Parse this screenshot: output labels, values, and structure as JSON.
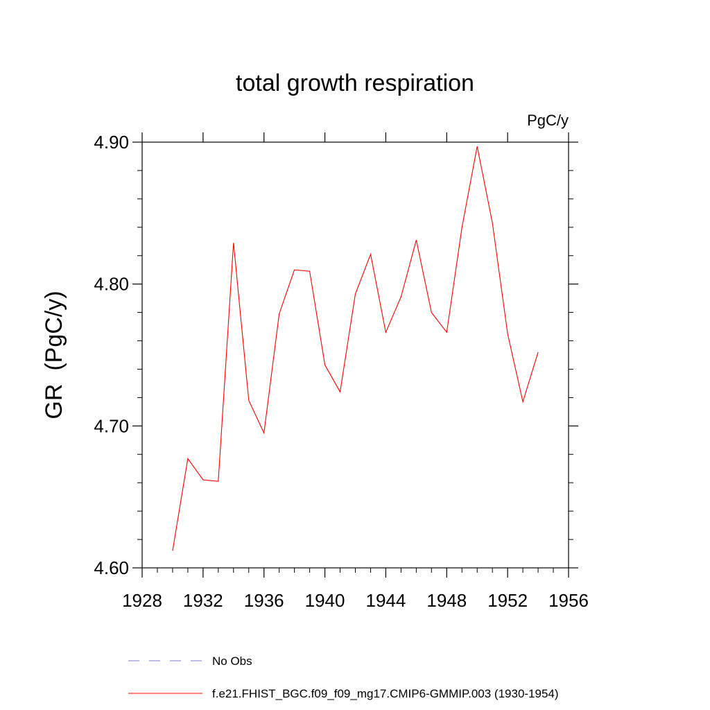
{
  "chart_data": {
    "type": "line",
    "title": "total growth respiration",
    "subtitle": "PgC/y",
    "xlabel": "",
    "ylabel": "GR  (PgC/y)",
    "xlim": [
      1928,
      1956
    ],
    "ylim": [
      4.6,
      4.9
    ],
    "x_ticks": [
      1928,
      1932,
      1936,
      1940,
      1944,
      1948,
      1952,
      1956
    ],
    "x_tick_labels": [
      "1928",
      "1932",
      "1936",
      "1940",
      "1944",
      "1948",
      "1952",
      "1956"
    ],
    "y_ticks": [
      4.6,
      4.7,
      4.8,
      4.9
    ],
    "y_tick_labels": [
      "4.60",
      "4.70",
      "4.80",
      "4.90"
    ],
    "grid": false,
    "legend_position": "bottom",
    "series": [
      {
        "name": "f.e21.FHIST_BGC.f09_f09_mg17.CMIP6-GMMIP.003 (1930-1954)",
        "color": "#ff0000",
        "x": [
          1930,
          1931,
          1932,
          1933,
          1934,
          1935,
          1936,
          1937,
          1938,
          1939,
          1940,
          1941,
          1942,
          1943,
          1944,
          1945,
          1946,
          1947,
          1948,
          1949,
          1950,
          1951,
          1952,
          1953,
          1954
        ],
        "y": [
          4.612,
          4.677,
          4.662,
          4.661,
          4.829,
          4.718,
          4.695,
          4.779,
          4.81,
          4.809,
          4.743,
          4.724,
          4.793,
          4.821,
          4.766,
          4.791,
          4.831,
          4.78,
          4.766,
          4.84,
          4.897,
          4.843,
          4.765,
          4.717,
          4.752
        ]
      }
    ],
    "legend": [
      {
        "label": "No Obs",
        "style": "dashed",
        "color": "#7b7bcf"
      },
      {
        "label": "f.e21.FHIST_BGC.f09_f09_mg17.CMIP6-GMMIP.003 (1930-1954)",
        "style": "solid",
        "color": "#ff0000"
      }
    ]
  }
}
